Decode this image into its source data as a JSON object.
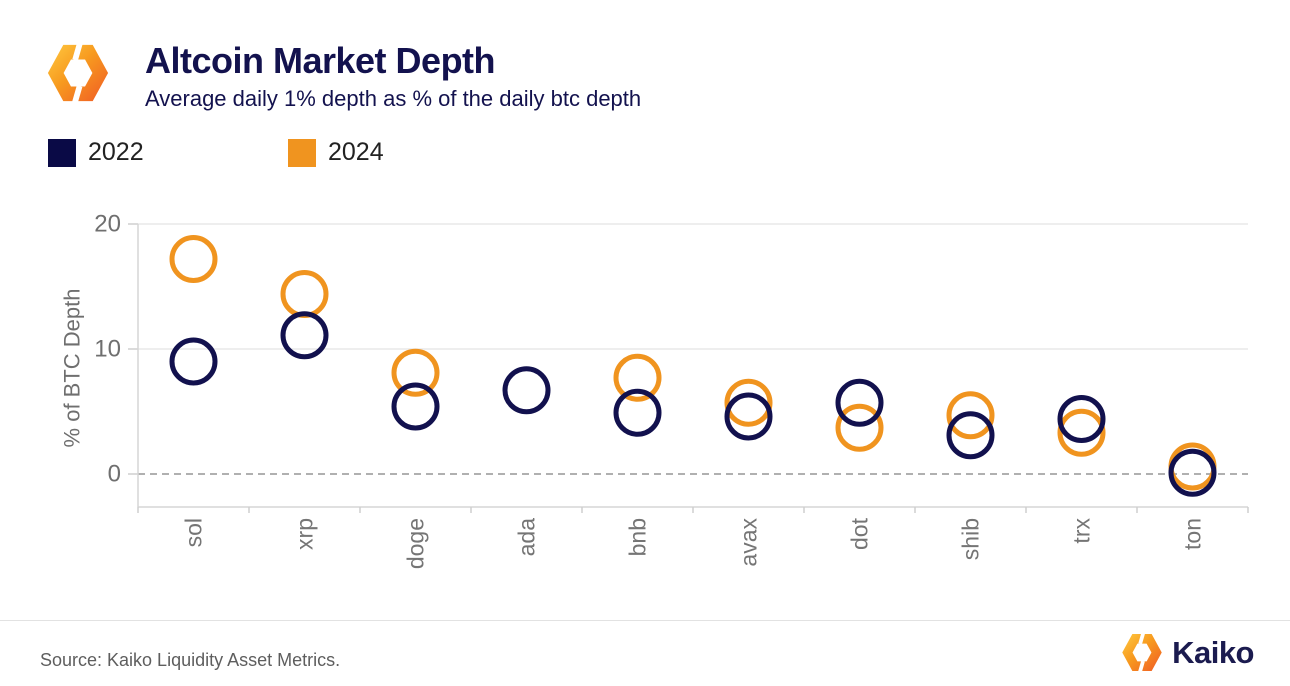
{
  "header": {
    "title": "Altcoin Market Depth",
    "subtitle": "Average daily 1% depth as % of the daily btc depth"
  },
  "legend": {
    "items": [
      {
        "label": "2022",
        "color": "#0A0A46"
      },
      {
        "label": "2024",
        "color": "#F0941F"
      }
    ]
  },
  "chart_data": {
    "type": "scatter",
    "title": "Altcoin Market Depth",
    "subtitle": "Average daily 1% depth as % of the daily btc depth",
    "ylabel": "% of BTC Depth",
    "unit": "%",
    "categories": [
      "sol",
      "xrp",
      "doge",
      "ada",
      "bnb",
      "avax",
      "dot",
      "shib",
      "trx",
      "ton"
    ],
    "series": [
      {
        "name": "2022",
        "color": "#12114E",
        "values": [
          9.0,
          11.1,
          5.4,
          6.7,
          4.9,
          4.6,
          5.7,
          3.1,
          4.4,
          0.1
        ]
      },
      {
        "name": "2024",
        "color": "#F0941F",
        "values": [
          17.2,
          14.4,
          8.1,
          null,
          7.7,
          5.7,
          3.7,
          4.7,
          3.3,
          0.6
        ]
      }
    ],
    "yticks": [
      20,
      10,
      0
    ],
    "ylim": [
      -2.6,
      20
    ],
    "marker": "open-circle",
    "grid": "horizontal",
    "zero_line_dashed": true,
    "legend_position": "top-left"
  },
  "footer": {
    "source": "Source: Kaiko Liquidity Asset Metrics.",
    "brand": "Kaiko"
  },
  "colors": {
    "navy": "#12114E",
    "orange": "#F0941F",
    "title_navy": "#13124E",
    "gridline": "#e9e9e9",
    "zero_line": "#b0b0b0",
    "axis_line": "#d6d6d6",
    "tick_mark": "#cfcfcf",
    "tick_text": "#6f6f6f",
    "x_label_text": "#757575",
    "source_text": "#5e5e5e"
  }
}
